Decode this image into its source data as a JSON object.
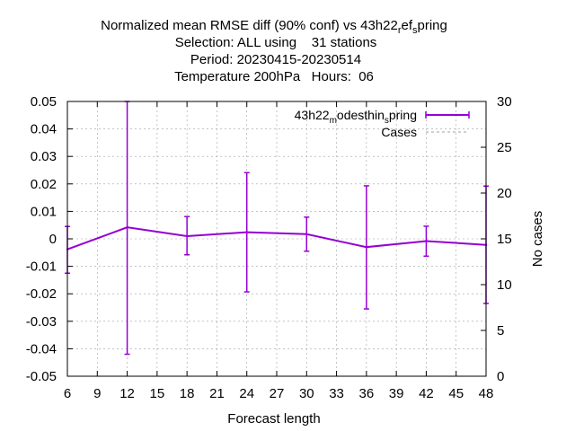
{
  "chart_data": {
    "type": "line",
    "title_lines": [
      "Normalized mean RMSE diff (90% conf) vs 43h22_ref_spring",
      "Selection: ALL using    31 stations",
      "Period: 20230415-20230514",
      "Temperature 200hPa   Hours:  06"
    ],
    "xlabel": "Forecast length",
    "ylabel_left": "",
    "ylabel_right": "No cases",
    "xlim": [
      6,
      48
    ],
    "ylim_left": [
      -0.05,
      0.05
    ],
    "ylim_right": [
      0,
      30
    ],
    "x_ticks": [
      "6",
      "9",
      "12",
      "15",
      "18",
      "21",
      "24",
      "27",
      "30",
      "33",
      "36",
      "39",
      "42",
      "45",
      "48"
    ],
    "y_ticks_left": [
      "0.05",
      "0.04",
      "0.03",
      "0.02",
      "0.01",
      "0",
      "-0.01",
      "-0.02",
      "-0.03",
      "-0.04",
      "-0.05"
    ],
    "y_ticks_right": [
      "30",
      "25",
      "20",
      "15",
      "10",
      "5",
      "0"
    ],
    "grid": true,
    "legend_position": "top-right",
    "series": [
      {
        "name": "43h22_modesthin_spring",
        "color": "#9400d3",
        "x": [
          6,
          12,
          18,
          24,
          30,
          36,
          42,
          48
        ],
        "y": [
          -0.0038,
          0.0042,
          0.001,
          0.0024,
          0.0017,
          -0.003,
          -0.0008,
          -0.0022
        ],
        "err_low": [
          -0.0125,
          -0.042,
          -0.0058,
          -0.0193,
          -0.0045,
          -0.0255,
          -0.0063,
          -0.0235
        ],
        "err_high": [
          0.0045,
          0.05,
          0.0081,
          0.0241,
          0.0079,
          0.0193,
          0.0046,
          0.0192
        ]
      },
      {
        "name": "Cases",
        "color": "#a0a0a0",
        "axis": "right",
        "x": [
          6,
          12,
          18,
          24,
          30,
          36,
          42,
          48
        ],
        "y": [
          31,
          31,
          31,
          31,
          31,
          31,
          31,
          31
        ]
      }
    ],
    "legend": {
      "entry1_main": "43h22",
      "entry1_sub1": "m",
      "entry1_mid": "odesthin",
      "entry1_sub2": "s",
      "entry1_end": "pring",
      "entry2": "Cases"
    }
  }
}
